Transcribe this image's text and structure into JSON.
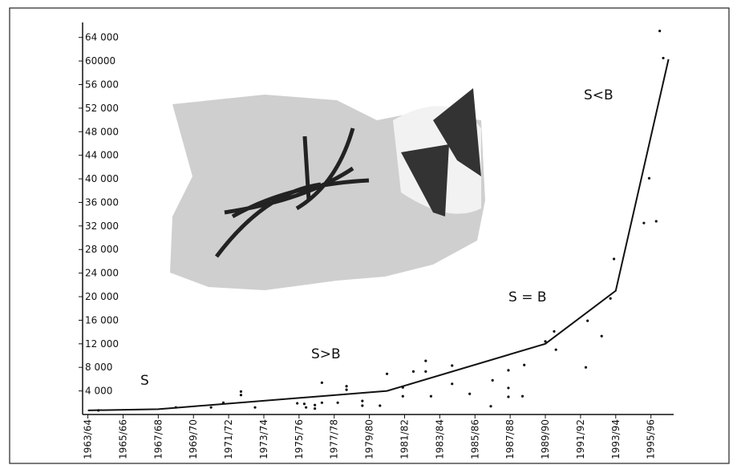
{
  "chart_data": {
    "type": "scatter",
    "annotations": [
      "S",
      "S>B",
      "S = B",
      "S<B"
    ],
    "color": "#111111",
    "points": {
      "x": [
        1963.6,
        1968,
        1970,
        1970.7,
        1971.7,
        1971.7,
        1972.5,
        1974.9,
        1975.3,
        1975.4,
        1975.9,
        1975.9,
        1976.3,
        1976.3,
        1977.2,
        1977.7,
        1977.7,
        1978.6,
        1978.6,
        1979.6,
        1980,
        1980.9,
        1980.9,
        1981.5,
        1982.2,
        1982.2,
        1982.5,
        1983.7,
        1983.7,
        1984.7,
        1985.9,
        1986,
        1986.9,
        1986.9,
        1986.9,
        1987.8,
        1987.7,
        1989,
        1989.5,
        1989.6,
        1991.3,
        1991.4,
        1992.2,
        1992.7,
        1992.9,
        1994.6,
        1994.9,
        1995.3,
        1995.5,
        1995.7
      ],
      "values": [
        700,
        1200,
        1200,
        2000,
        3900,
        3300,
        1200,
        1900,
        1800,
        1200,
        1600,
        1000,
        5400,
        2000,
        2000,
        4800,
        4200,
        2300,
        1500,
        1500,
        6900,
        4600,
        3100,
        7300,
        9100,
        7300,
        3100,
        8300,
        5200,
        3500,
        1400,
        5800,
        7500,
        4500,
        3000,
        8400,
        3100,
        12400,
        14100,
        11000,
        8000,
        15900,
        13300,
        19700,
        26400,
        32500,
        40100,
        32800,
        65100,
        60500
      ]
    },
    "trend": {
      "x": [
        1963,
        1967,
        1980,
        1989,
        1993,
        1996
      ],
      "values": [
        700,
        900,
        4000,
        12000,
        21000,
        60300
      ]
    },
    "xlim": [
      1962.7,
      1996.2
    ],
    "xticks": [
      {
        "value": 1963,
        "label": "1963/64"
      },
      {
        "value": 1965,
        "label": "1965/66"
      },
      {
        "value": 1967,
        "label": "1967/68"
      },
      {
        "value": 1969,
        "label": "1969/70"
      },
      {
        "value": 1971,
        "label": "1971/72"
      },
      {
        "value": 1973,
        "label": "1973/74"
      },
      {
        "value": 1975,
        "label": "1975/76"
      },
      {
        "value": 1977,
        "label": "1977/78"
      },
      {
        "value": 1979,
        "label": "1979/80"
      },
      {
        "value": 1981,
        "label": "1981/82"
      },
      {
        "value": 1983,
        "label": "1983/84"
      },
      {
        "value": 1985,
        "label": "1985/86"
      },
      {
        "value": 1987,
        "label": "1987/88"
      },
      {
        "value": 1989,
        "label": "1989/90"
      },
      {
        "value": 1991,
        "label": "1991/92"
      },
      {
        "value": 1993,
        "label": "1993/94"
      },
      {
        "value": 1995,
        "label": "1995/96"
      }
    ],
    "ylim": [
      0,
      66000
    ],
    "yticks": [
      {
        "value": 4000,
        "label": "4 000"
      },
      {
        "value": 8000,
        "label": "8 000"
      },
      {
        "value": 12000,
        "label": "12 000"
      },
      {
        "value": 16000,
        "label": "16 000"
      },
      {
        "value": 20000,
        "label": "20 000"
      },
      {
        "value": 24000,
        "label": "24 000"
      },
      {
        "value": 28000,
        "label": "28 000"
      },
      {
        "value": 32000,
        "label": "32 000"
      },
      {
        "value": 36000,
        "label": "36 000"
      },
      {
        "value": 40000,
        "label": "40 000"
      },
      {
        "value": 44000,
        "label": "44 000"
      },
      {
        "value": 48000,
        "label": "48 000"
      },
      {
        "value": 52000,
        "label": "52 000"
      },
      {
        "value": 56000,
        "label": "56 000"
      },
      {
        "value": 60000,
        "label": "60000"
      },
      {
        "value": 64000,
        "label": "64 000"
      }
    ]
  }
}
